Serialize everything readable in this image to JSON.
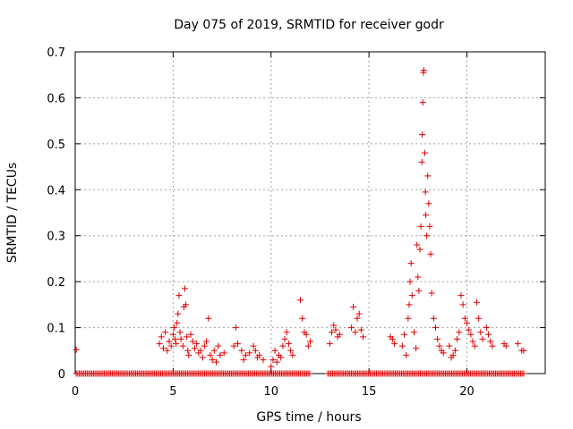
{
  "chart_data": {
    "type": "scatter",
    "title": "Day 075 of 2019, SRMTID for receiver godr",
    "xlabel": "GPS time / hours",
    "ylabel": "SRMTID / TECUs",
    "xlim": [
      0,
      24
    ],
    "ylim": [
      0,
      0.7
    ],
    "x_ticks": [
      0,
      5,
      10,
      15,
      20
    ],
    "x_tick_labels": [
      "0",
      "5",
      "10",
      "15",
      "20"
    ],
    "y_ticks": [
      0,
      0.1,
      0.2,
      0.3,
      0.4,
      0.5,
      0.6,
      0.7
    ],
    "y_tick_labels": [
      "0",
      "0.1",
      "0.2",
      "0.3",
      "0.4",
      "0.5",
      "0.6",
      "0.7"
    ],
    "grid": true,
    "marker": "plus",
    "color": "#dd0000",
    "series": [
      {
        "name": "SRMTID",
        "points": [
          [
            0.05,
            0.052
          ],
          [
            4.3,
            0.065
          ],
          [
            4.4,
            0.08
          ],
          [
            4.5,
            0.055
          ],
          [
            4.6,
            0.09
          ],
          [
            4.7,
            0.05
          ],
          [
            4.8,
            0.07
          ],
          [
            4.9,
            0.06
          ],
          [
            5.0,
            0.085
          ],
          [
            5.05,
            0.1
          ],
          [
            5.1,
            0.075
          ],
          [
            5.15,
            0.065
          ],
          [
            5.2,
            0.11
          ],
          [
            5.25,
            0.13
          ],
          [
            5.3,
            0.17
          ],
          [
            5.35,
            0.09
          ],
          [
            5.4,
            0.075
          ],
          [
            5.5,
            0.06
          ],
          [
            5.55,
            0.145
          ],
          [
            5.6,
            0.185
          ],
          [
            5.65,
            0.15
          ],
          [
            5.7,
            0.08
          ],
          [
            5.75,
            0.05
          ],
          [
            5.8,
            0.04
          ],
          [
            5.9,
            0.085
          ],
          [
            6.0,
            0.07
          ],
          [
            6.1,
            0.055
          ],
          [
            6.2,
            0.065
          ],
          [
            6.3,
            0.045
          ],
          [
            6.4,
            0.05
          ],
          [
            6.5,
            0.035
          ],
          [
            6.6,
            0.06
          ],
          [
            6.7,
            0.07
          ],
          [
            6.8,
            0.12
          ],
          [
            6.9,
            0.04
          ],
          [
            7.0,
            0.03
          ],
          [
            7.1,
            0.05
          ],
          [
            7.2,
            0.025
          ],
          [
            7.3,
            0.06
          ],
          [
            7.4,
            0.04
          ],
          [
            7.6,
            0.045
          ],
          [
            8.1,
            0.06
          ],
          [
            8.2,
            0.1
          ],
          [
            8.3,
            0.065
          ],
          [
            8.5,
            0.05
          ],
          [
            8.6,
            0.03
          ],
          [
            8.7,
            0.04
          ],
          [
            8.9,
            0.045
          ],
          [
            9.1,
            0.06
          ],
          [
            9.2,
            0.05
          ],
          [
            9.3,
            0.035
          ],
          [
            9.4,
            0.04
          ],
          [
            9.6,
            0.03
          ],
          [
            10.0,
            0.015
          ],
          [
            10.1,
            0.03
          ],
          [
            10.2,
            0.05
          ],
          [
            10.3,
            0.025
          ],
          [
            10.4,
            0.04
          ],
          [
            10.5,
            0.035
          ],
          [
            10.6,
            0.06
          ],
          [
            10.7,
            0.075
          ],
          [
            10.8,
            0.09
          ],
          [
            10.9,
            0.065
          ],
          [
            11.0,
            0.05
          ],
          [
            11.1,
            0.04
          ],
          [
            11.5,
            0.16
          ],
          [
            11.6,
            0.12
          ],
          [
            11.7,
            0.09
          ],
          [
            11.8,
            0.085
          ],
          [
            11.9,
            0.06
          ],
          [
            12.0,
            0.07
          ],
          [
            13.0,
            0.065
          ],
          [
            13.1,
            0.09
          ],
          [
            13.2,
            0.105
          ],
          [
            13.3,
            0.095
          ],
          [
            13.4,
            0.08
          ],
          [
            13.5,
            0.085
          ],
          [
            14.1,
            0.1
          ],
          [
            14.2,
            0.145
          ],
          [
            14.3,
            0.09
          ],
          [
            14.4,
            0.12
          ],
          [
            14.5,
            0.13
          ],
          [
            14.6,
            0.095
          ],
          [
            14.7,
            0.08
          ],
          [
            16.1,
            0.08
          ],
          [
            16.2,
            0.075
          ],
          [
            16.3,
            0.065
          ],
          [
            16.7,
            0.06
          ],
          [
            16.8,
            0.085
          ],
          [
            16.9,
            0.04
          ],
          [
            17.0,
            0.12
          ],
          [
            17.05,
            0.15
          ],
          [
            17.1,
            0.2
          ],
          [
            17.15,
            0.24
          ],
          [
            17.2,
            0.17
          ],
          [
            17.3,
            0.09
          ],
          [
            17.4,
            0.055
          ],
          [
            17.45,
            0.28
          ],
          [
            17.5,
            0.21
          ],
          [
            17.55,
            0.18
          ],
          [
            17.6,
            0.27
          ],
          [
            17.65,
            0.32
          ],
          [
            17.7,
            0.46
          ],
          [
            17.72,
            0.52
          ],
          [
            17.75,
            0.59
          ],
          [
            17.78,
            0.655
          ],
          [
            17.8,
            0.66
          ],
          [
            17.85,
            0.48
          ],
          [
            17.88,
            0.395
          ],
          [
            17.9,
            0.345
          ],
          [
            17.95,
            0.3
          ],
          [
            18.0,
            0.43
          ],
          [
            18.05,
            0.37
          ],
          [
            18.1,
            0.32
          ],
          [
            18.15,
            0.26
          ],
          [
            18.2,
            0.175
          ],
          [
            18.3,
            0.12
          ],
          [
            18.4,
            0.1
          ],
          [
            18.5,
            0.075
          ],
          [
            18.6,
            0.06
          ],
          [
            18.7,
            0.05
          ],
          [
            18.8,
            0.045
          ],
          [
            19.1,
            0.06
          ],
          [
            19.2,
            0.035
          ],
          [
            19.3,
            0.04
          ],
          [
            19.4,
            0.05
          ],
          [
            19.5,
            0.075
          ],
          [
            19.6,
            0.09
          ],
          [
            19.7,
            0.17
          ],
          [
            19.8,
            0.15
          ],
          [
            19.9,
            0.12
          ],
          [
            20.0,
            0.11
          ],
          [
            20.1,
            0.095
          ],
          [
            20.2,
            0.085
          ],
          [
            20.3,
            0.07
          ],
          [
            20.4,
            0.06
          ],
          [
            20.5,
            0.155
          ],
          [
            20.6,
            0.12
          ],
          [
            20.7,
            0.09
          ],
          [
            20.8,
            0.075
          ],
          [
            21.0,
            0.1
          ],
          [
            21.1,
            0.085
          ],
          [
            21.2,
            0.07
          ],
          [
            21.3,
            0.06
          ],
          [
            21.9,
            0.065
          ],
          [
            22.0,
            0.06
          ],
          [
            22.6,
            0.065
          ],
          [
            22.8,
            0.05
          ],
          [
            22.9,
            0.05
          ]
        ]
      },
      {
        "name": "SRMTID zero baseline",
        "y": 0,
        "x_ranges": [
          [
            0.05,
            12.0
          ],
          [
            12.9,
            22.9
          ]
        ],
        "spacing": 0.08
      }
    ]
  }
}
